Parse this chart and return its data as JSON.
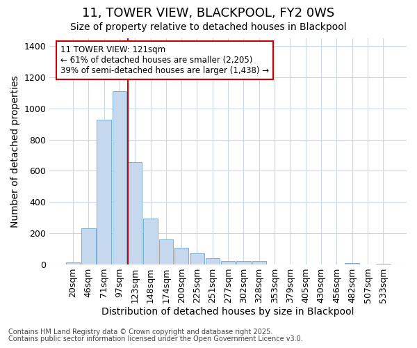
{
  "title": "11, TOWER VIEW, BLACKPOOL, FY2 0WS",
  "subtitle": "Size of property relative to detached houses in Blackpool",
  "xlabel": "Distribution of detached houses by size in Blackpool",
  "ylabel": "Number of detached properties",
  "bar_labels": [
    "20sqm",
    "46sqm",
    "71sqm",
    "97sqm",
    "123sqm",
    "148sqm",
    "174sqm",
    "200sqm",
    "225sqm",
    "251sqm",
    "277sqm",
    "302sqm",
    "328sqm",
    "353sqm",
    "379sqm",
    "405sqm",
    "430sqm",
    "456sqm",
    "482sqm",
    "507sqm",
    "533sqm"
  ],
  "bar_values": [
    15,
    230,
    930,
    1110,
    655,
    295,
    160,
    108,
    70,
    38,
    22,
    22,
    20,
    0,
    0,
    0,
    0,
    0,
    10,
    0,
    5
  ],
  "bar_color": "#c5d8ee",
  "bar_edge_color": "#7bafd4",
  "background_color": "#ffffff",
  "grid_color": "#c8d8ea",
  "ylim": [
    0,
    1450
  ],
  "yticks": [
    0,
    200,
    400,
    600,
    800,
    1000,
    1200,
    1400
  ],
  "annotation_text": "11 TOWER VIEW: 121sqm\n← 61% of detached houses are smaller (2,205)\n39% of semi-detached houses are larger (1,438) →",
  "annotation_box_color": "#ffffff",
  "annotation_box_edge": "#cc0000",
  "red_line_bin": 4,
  "footnote1": "Contains HM Land Registry data © Crown copyright and database right 2025.",
  "footnote2": "Contains public sector information licensed under the Open Government Licence v3.0.",
  "title_fontsize": 13,
  "subtitle_fontsize": 10,
  "axis_label_fontsize": 10,
  "tick_fontsize": 9,
  "annot_fontsize": 8.5,
  "footnote_fontsize": 7
}
